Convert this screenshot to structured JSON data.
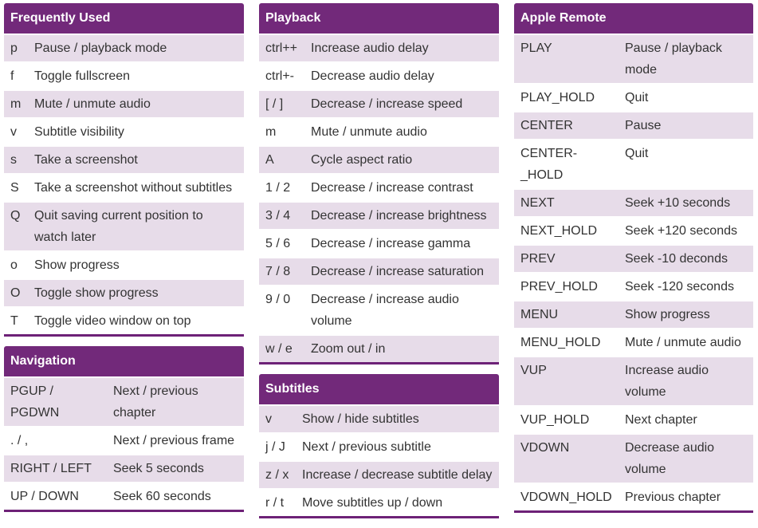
{
  "frequently_used": {
    "title": "Frequently Used",
    "rows": [
      {
        "key": "p",
        "desc": "Pause / playback mode"
      },
      {
        "key": "f",
        "desc": "Toggle fullscreen"
      },
      {
        "key": "m",
        "desc": "Mute / unmute audio"
      },
      {
        "key": "v",
        "desc": "Subtitle visibility"
      },
      {
        "key": "s",
        "desc": "Take a screenshot"
      },
      {
        "key": "S",
        "desc": "Take a screenshot without subtitles"
      },
      {
        "key": "Q",
        "desc": "Quit saving current position to watch later"
      },
      {
        "key": "o",
        "desc": "Show progress"
      },
      {
        "key": "O",
        "desc": "Toggle show progress"
      },
      {
        "key": "T",
        "desc": "Toggle video window on top"
      }
    ]
  },
  "navigation": {
    "title": "Navigation",
    "rows": [
      {
        "key": "PGUP / PGDWN",
        "desc": "Next / previous chapter"
      },
      {
        "key": ". / ,",
        "desc": "Next / previous frame"
      },
      {
        "key": "RIGHT / LEFT",
        "desc": "Seek 5 seconds"
      },
      {
        "key": "UP / DOWN",
        "desc": "Seek 60 seconds"
      }
    ]
  },
  "playback": {
    "title": "Playback",
    "rows": [
      {
        "key": "ctrl++",
        "desc": "Increase audio delay"
      },
      {
        "key": "ctrl+-",
        "desc": "Decrease audio delay"
      },
      {
        "key": "[ / ]",
        "desc": "Decrease / increase speed"
      },
      {
        "key": "m",
        "desc": "Mute / unmute audio"
      },
      {
        "key": "A",
        "desc": "Cycle aspect ratio"
      },
      {
        "key": "1 / 2",
        "desc": "Decrease / increase contrast"
      },
      {
        "key": "3 / 4",
        "desc": "Decrease / increase brightness"
      },
      {
        "key": "5 / 6",
        "desc": "Decrease / increase gamma"
      },
      {
        "key": "7 / 8",
        "desc": "Decrease / increase saturation"
      },
      {
        "key": "9 / 0",
        "desc": "Decrease / increase audio volume"
      },
      {
        "key": "w / e",
        "desc": "Zoom out / in"
      }
    ]
  },
  "subtitles": {
    "title": "Subtitles",
    "rows": [
      {
        "key": "v",
        "desc": "Show / hide subtitles"
      },
      {
        "key": "j / J",
        "desc": "Next / previous subtitle"
      },
      {
        "key": "z / x",
        "desc": "Increase / decrease subtitle delay"
      },
      {
        "key": "r / t",
        "desc": "Move subtitles up / down"
      }
    ]
  },
  "apple_remote": {
    "title": "Apple Remote",
    "rows": [
      {
        "key": "PLAY",
        "desc": "Pause / playback mode"
      },
      {
        "key": "PLAY_HOLD",
        "desc": "Quit"
      },
      {
        "key": "CENTER",
        "desc": "Pause"
      },
      {
        "key": "CENTER-_HOLD",
        "desc": "Quit"
      },
      {
        "key": "NEXT",
        "desc": "Seek +10 seconds"
      },
      {
        "key": "NEXT_HOLD",
        "desc": "Seek +120 seconds"
      },
      {
        "key": "PREV",
        "desc": "Seek -10 deconds"
      },
      {
        "key": "PREV_HOLD",
        "desc": "Seek -120 seconds"
      },
      {
        "key": "MENU",
        "desc": "Show progress"
      },
      {
        "key": "MENU_HOLD",
        "desc": "Mute / unmute audio"
      },
      {
        "key": "VUP",
        "desc": "Increase audio volume"
      },
      {
        "key": "VUP_HOLD",
        "desc": "Next chapter"
      },
      {
        "key": "VDOWN",
        "desc": "Decrease audio volume"
      },
      {
        "key": "VDOWN_HOLD",
        "desc": "Previous chapter"
      }
    ]
  },
  "colors": {
    "header_bg": "#72297a",
    "row_alt_bg": "#e7dce9",
    "text": "#333333"
  }
}
